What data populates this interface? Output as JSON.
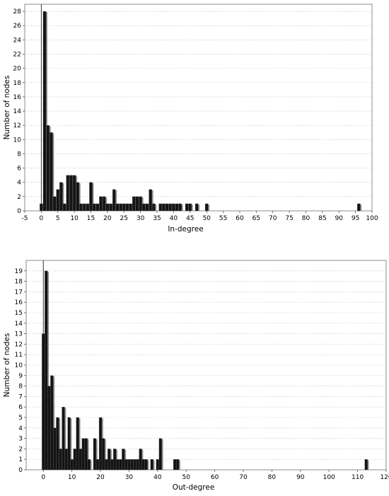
{
  "chart_data": [
    {
      "type": "bar",
      "title": "",
      "xlabel": "In-degree",
      "ylabel": "Number of nodes",
      "xlim": [
        -5,
        100
      ],
      "ylim": [
        0,
        29
      ],
      "x_ticks": [
        -5,
        0,
        5,
        10,
        15,
        20,
        25,
        30,
        35,
        40,
        45,
        50,
        55,
        60,
        65,
        70,
        75,
        80,
        85,
        90,
        95,
        100
      ],
      "y_ticks": [
        0,
        2,
        4,
        6,
        8,
        10,
        12,
        14,
        16,
        18,
        20,
        22,
        24,
        26,
        28
      ],
      "grid": "horizontal",
      "x": [
        0,
        1,
        2,
        3,
        4,
        5,
        6,
        7,
        8,
        9,
        10,
        11,
        12,
        13,
        14,
        15,
        16,
        17,
        18,
        19,
        20,
        21,
        22,
        23,
        24,
        25,
        26,
        27,
        28,
        29,
        30,
        31,
        32,
        33,
        34,
        36,
        37,
        38,
        39,
        40,
        41,
        42,
        44,
        45,
        47,
        50,
        96
      ],
      "values": [
        1,
        28,
        12,
        11,
        2,
        3,
        4,
        1,
        5,
        5,
        5,
        4,
        1,
        1,
        1,
        4,
        1,
        1,
        2,
        2,
        1,
        1,
        3,
        1,
        1,
        1,
        1,
        1,
        2,
        2,
        2,
        1,
        1,
        3,
        1,
        1,
        1,
        1,
        1,
        1,
        1,
        1,
        1,
        1,
        1,
        1,
        1
      ]
    },
    {
      "type": "bar",
      "title": "",
      "xlabel": "Out-degree",
      "ylabel": "Number of nodes",
      "xlim": [
        -6,
        120
      ],
      "ylim": [
        0,
        20
      ],
      "x_ticks": [
        0,
        10,
        20,
        30,
        40,
        50,
        60,
        70,
        80,
        90,
        100,
        110,
        120
      ],
      "y_ticks": [
        0,
        1,
        2,
        3,
        4,
        5,
        6,
        7,
        8,
        9,
        10,
        11,
        12,
        13,
        14,
        15,
        16,
        17,
        18,
        19
      ],
      "grid": "horizontal",
      "x": [
        0,
        1,
        2,
        3,
        4,
        5,
        6,
        7,
        8,
        9,
        10,
        11,
        12,
        13,
        14,
        15,
        16,
        18,
        19,
        20,
        21,
        22,
        23,
        24,
        25,
        26,
        27,
        28,
        29,
        30,
        31,
        32,
        33,
        34,
        35,
        36,
        38,
        40,
        41,
        46,
        47,
        113
      ],
      "values": [
        13,
        19,
        8,
        9,
        4,
        5,
        2,
        6,
        2,
        5,
        1,
        2,
        5,
        2,
        3,
        3,
        1,
        3,
        1,
        5,
        3,
        1,
        2,
        1,
        2,
        1,
        1,
        2,
        1,
        1,
        1,
        1,
        1,
        2,
        1,
        1,
        1,
        1,
        3,
        1,
        1,
        1
      ]
    }
  ]
}
